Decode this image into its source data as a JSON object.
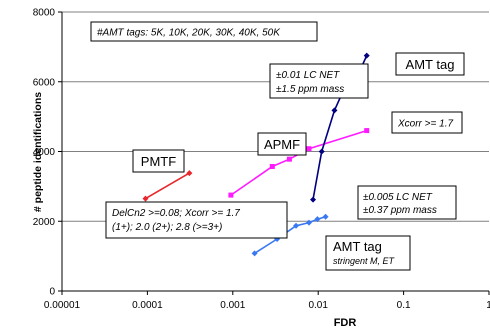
{
  "chart_data": {
    "type": "line",
    "title": "",
    "xlabel": "FDR",
    "ylabel": "# peptide identifications",
    "x_scale": "log",
    "xlim": [
      1e-05,
      1
    ],
    "ylim": [
      0,
      8000
    ],
    "x_ticks": [
      {
        "value": 1e-05,
        "label": "0.00001"
      },
      {
        "value": 0.0001,
        "label": "0.0001"
      },
      {
        "value": 0.001,
        "label": "0.001"
      },
      {
        "value": 0.01,
        "label": "0.01"
      },
      {
        "value": 0.1,
        "label": "0.1"
      },
      {
        "value": 1,
        "label": "1"
      }
    ],
    "y_ticks": [
      {
        "value": 0,
        "label": "0"
      },
      {
        "value": 2000,
        "label": "2000"
      },
      {
        "value": 4000,
        "label": "4000"
      },
      {
        "value": 6000,
        "label": "6000"
      },
      {
        "value": 8000,
        "label": "8000"
      }
    ],
    "grid": "horizontal",
    "series": [
      {
        "color": "#e8262b",
        "marker": "diamond",
        "points": [
          [
            9.5e-05,
            2650
          ],
          [
            0.00031,
            3380
          ]
        ]
      },
      {
        "color": "#ff1aff",
        "marker": "square",
        "points": [
          [
            0.00095,
            2750
          ],
          [
            0.0029,
            3570
          ],
          [
            0.0046,
            3780
          ],
          [
            0.0078,
            4080
          ],
          [
            0.037,
            4600
          ]
        ]
      },
      {
        "color": "#000080",
        "marker": "diamond",
        "points": [
          [
            0.0087,
            2620
          ],
          [
            0.011,
            4000
          ],
          [
            0.0155,
            5180
          ],
          [
            0.02,
            5780
          ],
          [
            0.03,
            6250
          ],
          [
            0.037,
            6750
          ]
        ]
      },
      {
        "color": "#3a78f2",
        "marker": "diamond",
        "points": [
          [
            0.0018,
            1080
          ],
          [
            0.0033,
            1490
          ],
          [
            0.0055,
            1870
          ],
          [
            0.0078,
            1960
          ],
          [
            0.0098,
            2060
          ],
          [
            0.0122,
            2130
          ]
        ]
      }
    ],
    "annotations": {
      "amt_tags": "#AMT tags: 5K, 10K, 20K, 30K, 40K, 50K",
      "amt_tag_label": "AMT tag",
      "loose_net_line1": "±0.01 LC NET",
      "loose_net_line2": "±1.5 ppm mass",
      "xcorr": "Xcorr >= 1.7",
      "apmf": "APMF",
      "pmtf": "PMTF",
      "strict_net_line1": "±0.005 LC NET",
      "strict_net_line2": "±0.37 ppm mass",
      "delcn_line1": "DelCn2 >=0.08; Xcorr >= 1.7",
      "delcn_line2": "(1+); 2.0  (2+); 2.8 (>=3+)",
      "amt_stringent_title": "AMT tag",
      "amt_stringent_sub": "stringent M, ET"
    }
  }
}
